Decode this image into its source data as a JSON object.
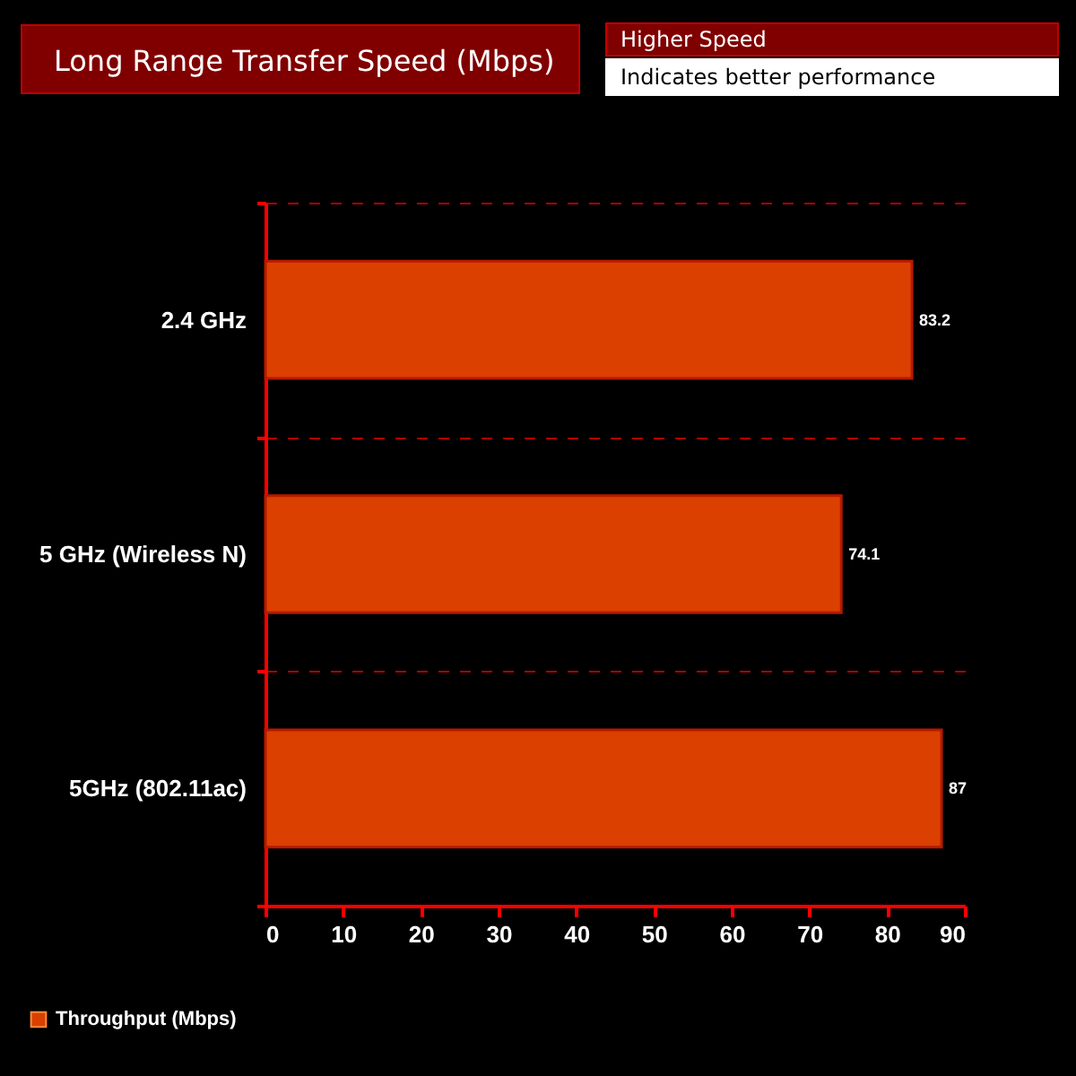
{
  "chart_data": {
    "type": "bar",
    "orientation": "horizontal",
    "title": "Long Range Transfer Speed (Mbps)",
    "annotations": [
      "Higher Speed",
      "Indicates better performance"
    ],
    "categories": [
      "2.4 GHz",
      "5 GHz (Wireless N)",
      "5GHz (802.11ac)"
    ],
    "series": [
      {
        "name": "Throughput (Mbps)",
        "color": "#dc4000",
        "values": [
          83.2,
          74.1,
          87
        ]
      }
    ],
    "xlim": [
      0,
      90
    ],
    "xticks": [
      0,
      10,
      20,
      30,
      40,
      50,
      60,
      70,
      80,
      90
    ],
    "grid": "y",
    "legend": "bottom left",
    "data_labels": true
  }
}
